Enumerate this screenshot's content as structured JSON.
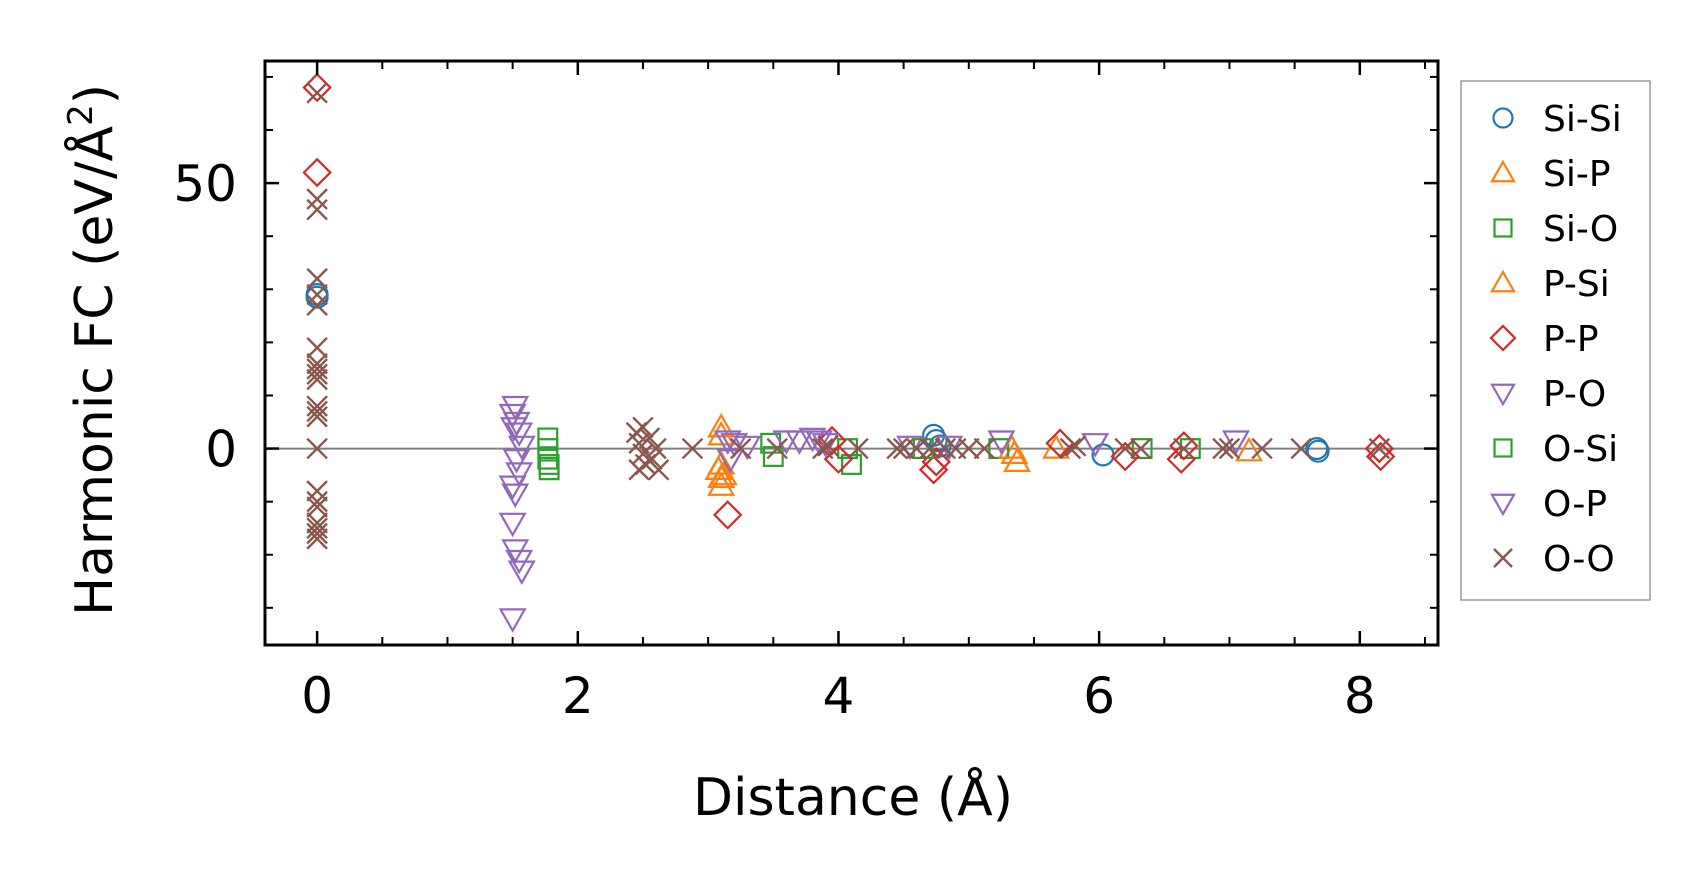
{
  "chart_data": {
    "type": "scatter",
    "title": "",
    "xlabel": "Distance (Å)",
    "ylabel_main": "Harmonic FC (eV/Å",
    "ylabel_sup": "2",
    "ylabel_close": ")",
    "xlim": [
      -0.4,
      8.6
    ],
    "ylim": [
      -37,
      73
    ],
    "xticks": [
      0,
      2,
      4,
      6,
      8
    ],
    "xtick_labels": [
      "0",
      "2",
      "4",
      "6",
      "8"
    ],
    "xminor": [
      -0.5,
      0.5,
      1.0,
      1.5,
      2.5,
      3.0,
      3.5,
      4.5,
      5.0,
      5.5,
      6.5,
      7.0,
      7.5,
      8.5
    ],
    "yticks": [
      0,
      50
    ],
    "ytick_labels": [
      "0",
      "50"
    ],
    "yminor": [
      -30,
      -20,
      -10,
      10,
      20,
      30,
      40,
      60,
      70
    ],
    "zero_line": true,
    "grid": false,
    "legend_position": "outside-right",
    "series": [
      {
        "name": "Si-Si",
        "marker": "circle",
        "color": "#1f77b4",
        "points": [
          [
            0,
            29
          ],
          [
            0,
            28.5
          ],
          [
            4.73,
            2.5
          ],
          [
            4.75,
            1.5
          ],
          [
            4.78,
            0.5
          ],
          [
            6.03,
            -1.2
          ],
          [
            7.67,
            0
          ],
          [
            7.68,
            -0.5
          ]
        ]
      },
      {
        "name": "Si-P",
        "marker": "triangle-up",
        "color": "#ff7f0e",
        "points": [
          [
            3.1,
            4
          ],
          [
            3.1,
            2.5
          ],
          [
            3.1,
            -3
          ],
          [
            3.12,
            -5
          ],
          [
            3.1,
            -7
          ],
          [
            5.35,
            -1
          ],
          [
            5.37,
            -2.5
          ],
          [
            5.67,
            0
          ],
          [
            7.15,
            -0.5
          ]
        ]
      },
      {
        "name": "Si-O",
        "marker": "square",
        "color": "#2ca02c",
        "points": [
          [
            1.77,
            2
          ],
          [
            1.77,
            0
          ],
          [
            1.77,
            -2
          ],
          [
            1.78,
            -4
          ],
          [
            3.48,
            1
          ],
          [
            3.5,
            -1.5
          ],
          [
            4.07,
            0
          ],
          [
            4.1,
            -3
          ],
          [
            5.23,
            0
          ],
          [
            6.33,
            0
          ],
          [
            6.7,
            0
          ]
        ]
      },
      {
        "name": "P-Si",
        "marker": "triangle-up",
        "color": "#ff7f0e",
        "points": [
          [
            3.08,
            -4
          ],
          [
            3.1,
            -5.5
          ],
          [
            5.33,
            0
          ]
        ]
      },
      {
        "name": "P-P",
        "marker": "diamond",
        "color": "#d62728",
        "points": [
          [
            0,
            68
          ],
          [
            0,
            52
          ],
          [
            3.15,
            -12.5
          ],
          [
            3.95,
            1.5
          ],
          [
            4.0,
            -2
          ],
          [
            4.73,
            -4
          ],
          [
            4.75,
            -2.5
          ],
          [
            5.7,
            1
          ],
          [
            6.2,
            -1.5
          ],
          [
            6.63,
            -2
          ],
          [
            6.65,
            0.5
          ],
          [
            8.15,
            0
          ],
          [
            8.16,
            -1.5
          ]
        ]
      },
      {
        "name": "P-O",
        "marker": "triangle-down",
        "color": "#9467bd",
        "points": [
          [
            1.52,
            8
          ],
          [
            1.5,
            6.5
          ],
          [
            1.53,
            5
          ],
          [
            1.55,
            3
          ],
          [
            1.57,
            0.5
          ],
          [
            1.53,
            -2
          ],
          [
            1.55,
            -4.5
          ],
          [
            1.5,
            -7
          ],
          [
            1.52,
            -8.5
          ],
          [
            1.5,
            -14
          ],
          [
            1.52,
            -19
          ],
          [
            1.55,
            -21
          ],
          [
            1.57,
            -23
          ],
          [
            1.5,
            -32
          ],
          [
            3.15,
            1.5
          ],
          [
            3.17,
            -2
          ],
          [
            3.3,
            0.5
          ],
          [
            3.8,
            2
          ],
          [
            3.9,
            1
          ],
          [
            5.25,
            1.5
          ],
          [
            5.97,
            1
          ]
        ]
      },
      {
        "name": "O-Si",
        "marker": "square",
        "color": "#2ca02c",
        "points": [
          [
            1.78,
            -3
          ],
          [
            4.65,
            0
          ]
        ]
      },
      {
        "name": "O-P",
        "marker": "triangle-down",
        "color": "#9467bd",
        "points": [
          [
            1.51,
            4
          ],
          [
            3.2,
            1
          ],
          [
            3.6,
            1.5
          ],
          [
            3.7,
            1.5
          ],
          [
            3.85,
            1.5
          ],
          [
            4.55,
            0.5
          ],
          [
            4.85,
            0.5
          ],
          [
            7.05,
            1.5
          ]
        ]
      },
      {
        "name": "O-O",
        "marker": "x",
        "color": "#8c564b",
        "points": [
          [
            0,
            67
          ],
          [
            0,
            47
          ],
          [
            0,
            45
          ],
          [
            0,
            32
          ],
          [
            0,
            29
          ],
          [
            0,
            27
          ],
          [
            0,
            19
          ],
          [
            0,
            16
          ],
          [
            0,
            15
          ],
          [
            0,
            14
          ],
          [
            0,
            13
          ],
          [
            0,
            8
          ],
          [
            0,
            7
          ],
          [
            0,
            6
          ],
          [
            0,
            0
          ],
          [
            0,
            -8
          ],
          [
            0,
            -10
          ],
          [
            0,
            -11
          ],
          [
            0,
            -14
          ],
          [
            0,
            -15
          ],
          [
            0,
            -16
          ],
          [
            0,
            -17
          ],
          [
            2.45,
            3
          ],
          [
            2.47,
            1
          ],
          [
            2.5,
            -1
          ],
          [
            2.52,
            -3
          ],
          [
            2.55,
            2
          ],
          [
            2.57,
            -2
          ],
          [
            2.6,
            0
          ],
          [
            2.62,
            -4
          ],
          [
            2.47,
            -4
          ],
          [
            2.5,
            4
          ],
          [
            2.88,
            0
          ],
          [
            3.25,
            0
          ],
          [
            3.53,
            0
          ],
          [
            3.88,
            0
          ],
          [
            3.92,
            0.5
          ],
          [
            4.15,
            0
          ],
          [
            4.45,
            0
          ],
          [
            4.5,
            0
          ],
          [
            4.6,
            0
          ],
          [
            4.7,
            0
          ],
          [
            4.82,
            0
          ],
          [
            4.9,
            0
          ],
          [
            5.0,
            0
          ],
          [
            5.12,
            0
          ],
          [
            5.78,
            0
          ],
          [
            5.82,
            0.5
          ],
          [
            6.2,
            0
          ],
          [
            6.32,
            0
          ],
          [
            6.65,
            0
          ],
          [
            6.95,
            0
          ],
          [
            7.0,
            0
          ],
          [
            7.25,
            0
          ],
          [
            7.55,
            0
          ],
          [
            8.15,
            0
          ]
        ]
      }
    ]
  }
}
